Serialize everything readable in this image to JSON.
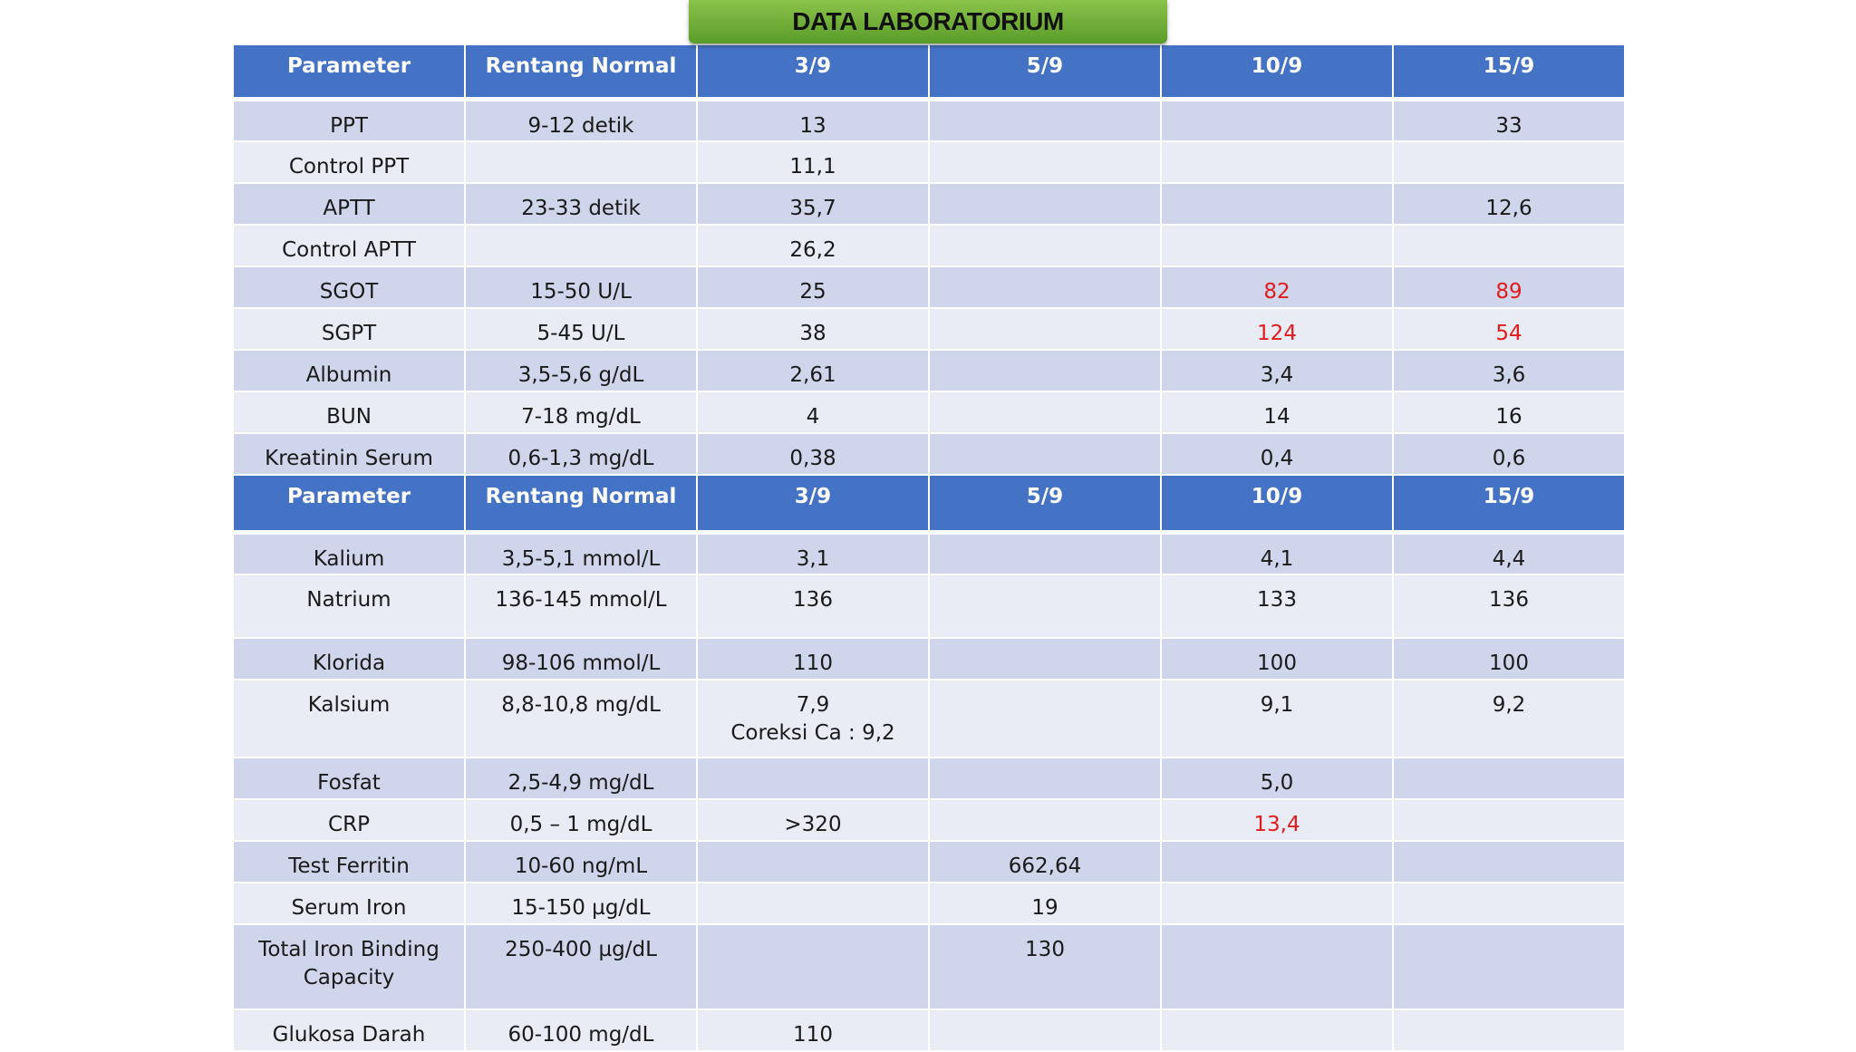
{
  "title": "DATA LABORATORIUM",
  "columns": [
    "Parameter",
    "Rentang Normal",
    "3/9",
    "5/9",
    "10/9",
    "15/9"
  ],
  "section1": [
    {
      "cells": [
        "PPT",
        "9-12 detik",
        "13",
        "",
        "",
        "33"
      ],
      "red": []
    },
    {
      "cells": [
        "Control PPT",
        "",
        "11,1",
        "",
        "",
        ""
      ],
      "red": []
    },
    {
      "cells": [
        "APTT",
        "23-33 detik",
        "35,7",
        "",
        "",
        "12,6"
      ],
      "red": []
    },
    {
      "cells": [
        "Control APTT",
        "",
        "26,2",
        "",
        "",
        ""
      ],
      "red": []
    },
    {
      "cells": [
        "SGOT",
        "15-50 U/L",
        "25",
        "",
        "82",
        "89"
      ],
      "red": [
        4,
        5
      ]
    },
    {
      "cells": [
        "SGPT",
        "5-45 U/L",
        "38",
        "",
        "124",
        "54"
      ],
      "red": [
        4,
        5
      ]
    },
    {
      "cells": [
        "Albumin",
        "3,5-5,6 g/dL",
        "2,61",
        "",
        "3,4",
        "3,6"
      ],
      "red": []
    },
    {
      "cells": [
        "BUN",
        "7-18 mg/dL",
        "4",
        "",
        "14",
        "16"
      ],
      "red": []
    },
    {
      "cells": [
        "Kreatinin Serum",
        "0,6-1,3 mg/dL",
        "0,38",
        "",
        "0,4",
        "0,6"
      ],
      "red": []
    }
  ],
  "section2": [
    {
      "cells": [
        "Kalium",
        "3,5-5,1 mmol/L",
        "3,1",
        "",
        "4,1",
        "4,4"
      ],
      "red": []
    },
    {
      "cells": [
        "Natrium",
        "136-145 mmol/L",
        "136",
        "",
        "133",
        "136"
      ],
      "red": []
    },
    {
      "cells": [
        "Klorida",
        "98-106 mmol/L",
        "110",
        "",
        "100",
        "100"
      ],
      "red": []
    },
    {
      "cells": [
        "Kalsium",
        "8,8-10,8 mg/dL",
        "7,9\nCoreksi Ca : 9,2",
        "",
        "9,1",
        "9,2"
      ],
      "red": []
    },
    {
      "cells": [
        "Fosfat",
        "2,5-4,9 mg/dL",
        "",
        "",
        "5,0",
        ""
      ],
      "red": []
    },
    {
      "cells": [
        "CRP",
        "0,5 – 1 mg/dL",
        ">320",
        "",
        "13,4",
        ""
      ],
      "red": [
        4
      ]
    },
    {
      "cells": [
        "Test Ferritin",
        "10-60 ng/mL",
        "",
        "662,64",
        "",
        ""
      ],
      "red": []
    },
    {
      "cells": [
        "Serum Iron",
        "15-150 µg/dL",
        "",
        "19",
        "",
        ""
      ],
      "red": []
    },
    {
      "cells": [
        "Total Iron Binding\nCapacity",
        "250-400 µg/dL",
        "",
        "130",
        "",
        ""
      ],
      "red": []
    },
    {
      "cells": [
        "Glukosa Darah",
        "60-100 mg/dL",
        "110",
        "",
        "",
        ""
      ],
      "red": []
    }
  ]
}
